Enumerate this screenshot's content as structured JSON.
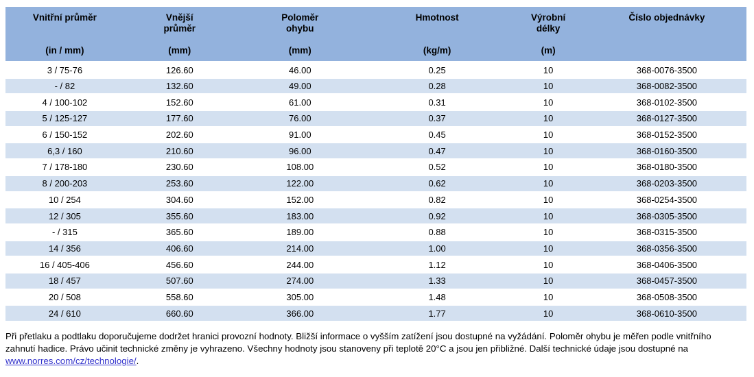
{
  "table": {
    "columns": [
      {
        "title_lines": [
          "Vnitřní průměr"
        ],
        "unit": "(in / mm)",
        "width_pct": 16.0
      },
      {
        "title_lines": [
          "Vnější",
          "průměr"
        ],
        "unit": "(mm)",
        "width_pct": 15.0
      },
      {
        "title_lines": [
          "Poloměr",
          "ohybu"
        ],
        "unit": "(mm)",
        "width_pct": 17.5
      },
      {
        "title_lines": [
          "Hmotnost"
        ],
        "unit": "(kg/m)",
        "width_pct": 19.5
      },
      {
        "title_lines": [
          "Výrobní",
          "délky"
        ],
        "unit": "(m)",
        "width_pct": 10.5
      },
      {
        "title_lines": [
          "Číslo objednávky"
        ],
        "unit": "",
        "width_pct": 21.5
      }
    ],
    "rows": [
      [
        "3 / 75-76",
        "126.60",
        "46.00",
        "0.25",
        "10",
        "368-0076-3500"
      ],
      [
        "- / 82",
        "132.60",
        "49.00",
        "0.28",
        "10",
        "368-0082-3500"
      ],
      [
        "4 / 100-102",
        "152.60",
        "61.00",
        "0.31",
        "10",
        "368-0102-3500"
      ],
      [
        "5 / 125-127",
        "177.60",
        "76.00",
        "0.37",
        "10",
        "368-0127-3500"
      ],
      [
        "6 / 150-152",
        "202.60",
        "91.00",
        "0.45",
        "10",
        "368-0152-3500"
      ],
      [
        "6,3 / 160",
        "210.60",
        "96.00",
        "0.47",
        "10",
        "368-0160-3500"
      ],
      [
        "7 / 178-180",
        "230.60",
        "108.00",
        "0.52",
        "10",
        "368-0180-3500"
      ],
      [
        "8 / 200-203",
        "253.60",
        "122.00",
        "0.62",
        "10",
        "368-0203-3500"
      ],
      [
        "10 / 254",
        "304.60",
        "152.00",
        "0.82",
        "10",
        "368-0254-3500"
      ],
      [
        "12 / 305",
        "355.60",
        "183.00",
        "0.92",
        "10",
        "368-0305-3500"
      ],
      [
        "- / 315",
        "365.60",
        "189.00",
        "0.88",
        "10",
        "368-0315-3500"
      ],
      [
        "14 / 356",
        "406.60",
        "214.00",
        "1.00",
        "10",
        "368-0356-3500"
      ],
      [
        "16 / 405-406",
        "456.60",
        "244.00",
        "1.12",
        "10",
        "368-0406-3500"
      ],
      [
        "18 / 457",
        "507.60",
        "274.00",
        "1.33",
        "10",
        "368-0457-3500"
      ],
      [
        "20 / 508",
        "558.60",
        "305.00",
        "1.48",
        "10",
        "368-0508-3500"
      ],
      [
        "24 / 610",
        "660.60",
        "366.00",
        "1.77",
        "10",
        "368-0610-3500"
      ]
    ],
    "colors": {
      "header_bg": "#93B2DD",
      "row_alt_bg": "#D3E0F0",
      "row_bg": "#FFFFFF",
      "text": "#000000"
    }
  },
  "footer": {
    "lines": [
      "Při přetlaku a podtlaku doporučujeme dodržet hranici provozní hodnoty. Bližší informace o vyšším zatížení jsou dostupné na vyžádání. Poloměr ohybu je měřen podle vnitřního",
      "zahnutí hadice. Právo učinit technické změny je vyhrazeno. Všechny hodnoty jsou stanoveny při teplotě 20°C a jsou jen přibližné. Další technické údaje jsou dostupné na"
    ],
    "link_text": "www.norres.com/cz/technologie/",
    "suffix": ".",
    "link_color": "#3333CC"
  }
}
